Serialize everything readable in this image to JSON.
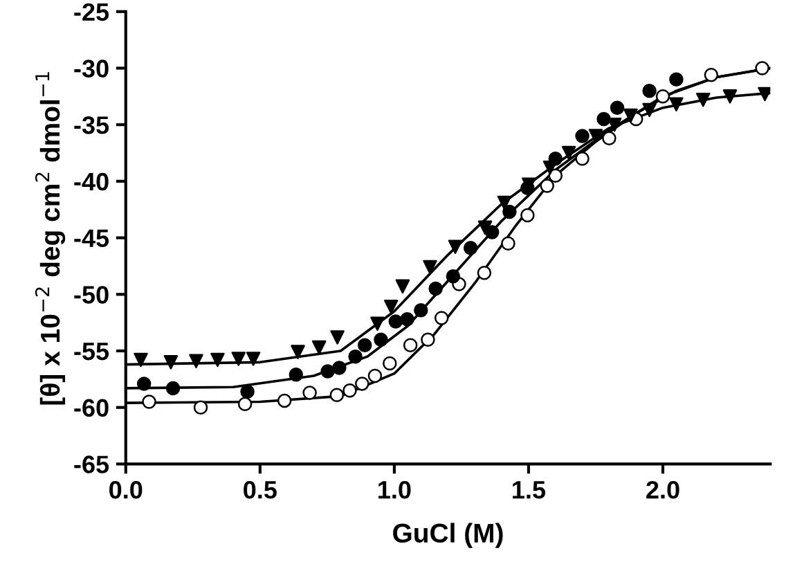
{
  "chart_data": {
    "type": "scatter",
    "xlabel": "GuCl (M)",
    "ylabel": "[θ] x 10$^{−2}$ deg cm$^{2}$ dmol$^{−1}$",
    "xlim": [
      0,
      2.4
    ],
    "xticks": [
      {
        "value": 0,
        "label": "0.0"
      },
      0.5,
      {
        "value": 1,
        "label": "1.0"
      },
      1.5,
      {
        "value": 2,
        "label": "2.0"
      }
    ],
    "ylim": [
      -65,
      -25
    ],
    "yticks": [
      -65,
      -60,
      -55,
      -50,
      -45,
      -40,
      -35,
      -30,
      -25
    ],
    "grid": false,
    "series": [
      {
        "marker": "triangle",
        "color": "#000000",
        "x": [
          0.056,
          0.168,
          0.262,
          0.342,
          0.42,
          0.475,
          0.641,
          0.72,
          0.788,
          0.937,
          0.988,
          1.031,
          1.133,
          1.227,
          1.338,
          1.41,
          1.501,
          1.58,
          1.65,
          1.75,
          1.82,
          1.88,
          1.95,
          2.05,
          2.15,
          2.25,
          2.38
        ],
        "values": [
          -55.8,
          -56.0,
          -55.9,
          -55.8,
          -55.7,
          -55.7,
          -55.1,
          -54.7,
          -53.8,
          -52.6,
          -51.1,
          -49.3,
          -47.6,
          -45.8,
          -44.1,
          -41.9,
          -40.3,
          -38.8,
          -37.5,
          -36.0,
          -35.0,
          -34.2,
          -33.7,
          -33.2,
          -32.8,
          -32.5,
          -32.3
        ]
      },
      {
        "marker": "circle",
        "color": "#000000",
        "x": [
          0.068,
          0.176,
          0.453,
          0.634,
          0.752,
          0.795,
          0.855,
          0.89,
          0.95,
          1.005,
          1.048,
          1.099,
          1.154,
          1.219,
          1.284,
          1.364,
          1.429,
          1.496,
          1.6,
          1.7,
          1.78,
          1.83,
          1.95,
          2.05
        ],
        "values": [
          -57.9,
          -58.3,
          -58.6,
          -57.1,
          -56.8,
          -56.5,
          -55.5,
          -54.5,
          -54.0,
          -52.4,
          -52.2,
          -51.4,
          -49.5,
          -48.4,
          -45.9,
          -44.5,
          -42.7,
          -40.6,
          -38.0,
          -36.0,
          -34.5,
          -33.5,
          -32.0,
          -31.0
        ]
      },
      {
        "marker": "circle",
        "color": "#ffffff",
        "x": [
          0.087,
          0.279,
          0.444,
          0.591,
          0.685,
          0.786,
          0.834,
          0.88,
          0.928,
          0.983,
          1.06,
          1.125,
          1.176,
          1.241,
          1.335,
          1.424,
          1.496,
          1.569,
          1.6,
          1.7,
          1.8,
          1.9,
          2.0,
          2.18,
          2.37
        ],
        "values": [
          -59.5,
          -60.0,
          -59.7,
          -59.4,
          -58.7,
          -58.9,
          -58.5,
          -57.9,
          -57.2,
          -56.1,
          -54.5,
          -54.0,
          -52.1,
          -49.1,
          -48.1,
          -45.5,
          -43.0,
          -40.4,
          -39.5,
          -38.0,
          -36.2,
          -34.5,
          -32.5,
          -30.6,
          -30.0
        ]
      },
      {
        "type": "line",
        "color": "#000000",
        "x": [
          0,
          0.5,
          0.8,
          1.0,
          1.2,
          1.4,
          1.6,
          1.8,
          2.0,
          2.2,
          2.4
        ],
        "values": [
          -56.2,
          -56.0,
          -55.0,
          -51.5,
          -46.5,
          -42.0,
          -38.5,
          -35.3,
          -33.5,
          -32.6,
          -32.2
        ]
      },
      {
        "type": "line",
        "color": "#000000",
        "x": [
          0,
          0.4,
          0.7,
          0.9,
          1.05,
          1.2,
          1.4,
          1.6,
          1.8,
          2.0,
          2.2,
          2.4
        ],
        "values": [
          -58.3,
          -58.2,
          -57.2,
          -55.5,
          -52.8,
          -48.8,
          -43.5,
          -39.0,
          -35.5,
          -32.5,
          -30.8,
          -30.0
        ]
      },
      {
        "type": "line",
        "color": "#000000",
        "x": [
          0,
          0.5,
          0.8,
          1.0,
          1.15,
          1.3,
          1.45,
          1.6,
          1.75,
          1.9,
          2.05,
          2.2,
          2.4
        ],
        "values": [
          -59.6,
          -59.5,
          -59.0,
          -57.0,
          -53.5,
          -49.0,
          -44.0,
          -39.5,
          -36.5,
          -34.0,
          -32.0,
          -30.8,
          -30.0
        ]
      }
    ]
  }
}
